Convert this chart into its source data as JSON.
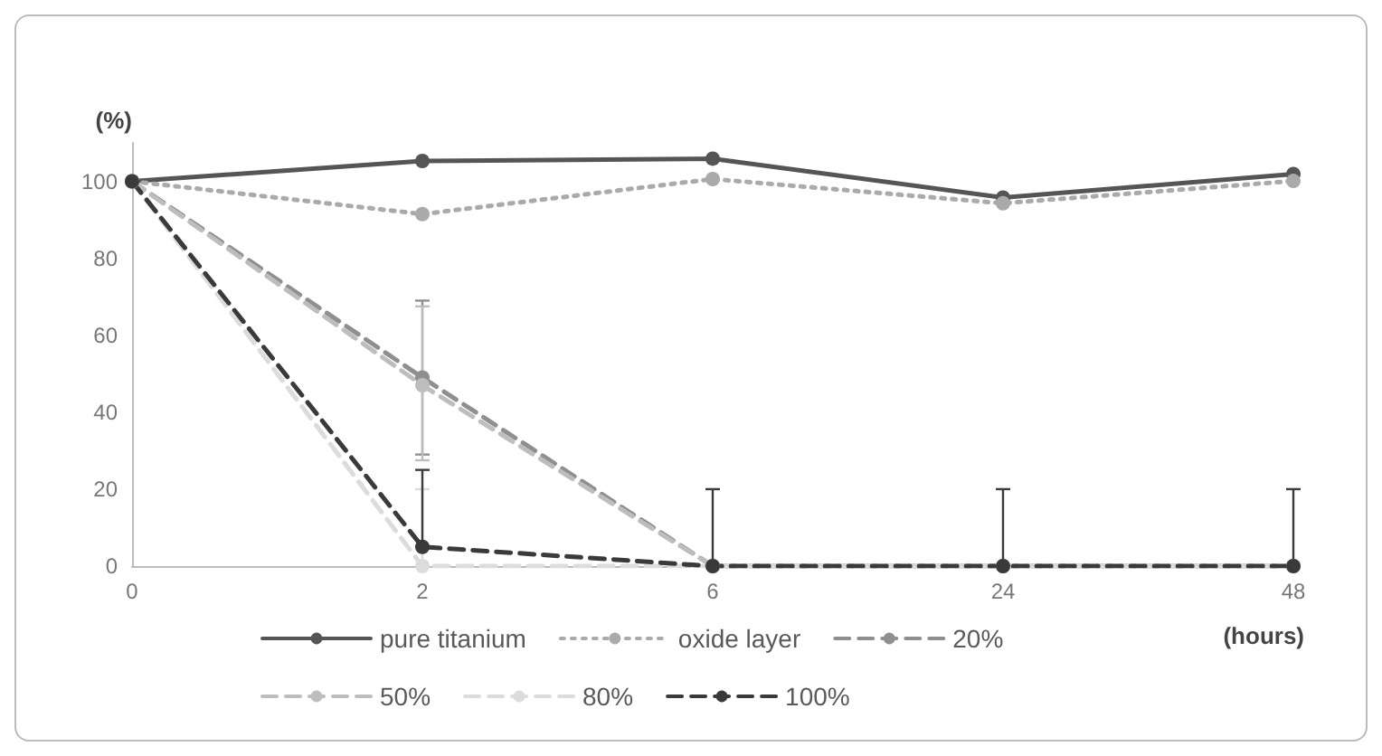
{
  "chart_data": {
    "type": "line",
    "ylabel": "(%)",
    "xlabel": "(hours)",
    "categories": [
      "0",
      "2",
      "6",
      "24",
      "48"
    ],
    "ylim": [
      0,
      110
    ],
    "yticks": [
      0,
      20,
      40,
      60,
      80,
      100
    ],
    "grid": false,
    "legend": "bottom",
    "marker": "circle",
    "series": [
      {
        "name": "pure titanium",
        "color": "#555555",
        "line_style": "solid",
        "values": [
          100,
          105.3,
          105.9,
          95.8,
          101.9
        ]
      },
      {
        "name": "oxide layer",
        "color": "#aaaaaa",
        "line_style": "dotted",
        "values": [
          100,
          91.5,
          100.6,
          94.3,
          100.1
        ]
      },
      {
        "name": "20%",
        "color": "#8f8f8f",
        "line_style": "dashed",
        "values": [
          100,
          49,
          0,
          0,
          0
        ],
        "errors": [
          null,
          [
            29,
            69
          ],
          null,
          null,
          null
        ]
      },
      {
        "name": "50%",
        "color": "#bdbdbd",
        "line_style": "dashed",
        "values": [
          100,
          47,
          0,
          0,
          0
        ],
        "errors": [
          null,
          [
            27.5,
            67.5
          ],
          null,
          null,
          null
        ]
      },
      {
        "name": "80%",
        "color": "#dcdcdc",
        "line_style": "dashed",
        "values": [
          100,
          0,
          0,
          0,
          0
        ],
        "errors": [
          null,
          [
            0,
            20
          ],
          null,
          null,
          null
        ]
      },
      {
        "name": "100%",
        "color": "#3a3a3a",
        "line_style": "dashed",
        "values": [
          100,
          5,
          0,
          0,
          0
        ],
        "errors": [
          null,
          [
            5,
            25
          ],
          [
            0,
            20
          ],
          [
            0,
            20
          ],
          [
            0,
            20
          ]
        ]
      }
    ]
  }
}
